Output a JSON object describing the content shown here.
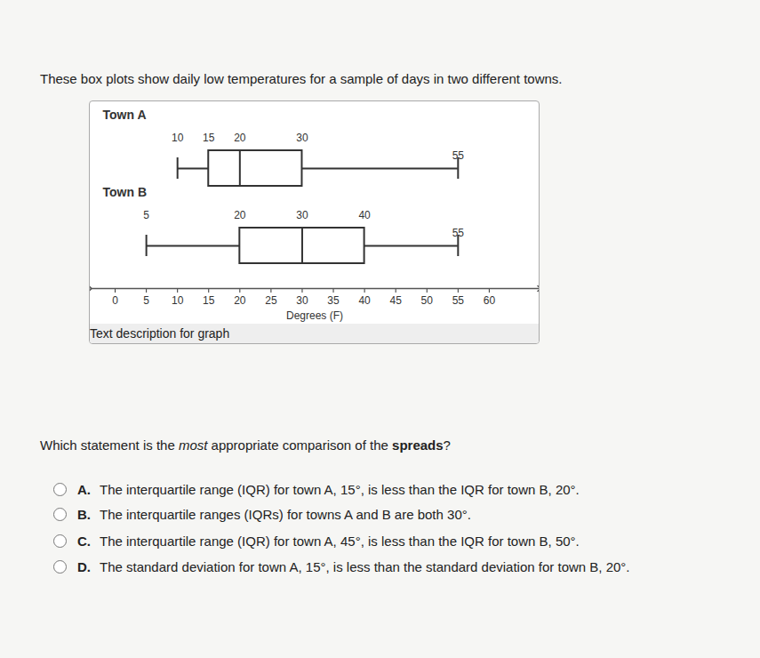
{
  "prompt": "These box plots show daily low temperatures for a sample of days in two different towns.",
  "chart_data": {
    "type": "boxplot",
    "categories": [
      "Town A",
      "Town B"
    ],
    "min": [
      10,
      5
    ],
    "q1": [
      15,
      20
    ],
    "median": [
      20,
      30
    ],
    "q3": [
      30,
      40
    ],
    "max": [
      55,
      55
    ],
    "data_labels": true,
    "xlim": [
      -4,
      68
    ],
    "xticks": [
      0,
      5,
      10,
      15,
      20,
      25,
      30,
      35,
      40,
      45,
      50,
      55,
      60
    ],
    "x_label": "Degrees (F)"
  },
  "link": "Text description for graph",
  "question": [
    {
      "text": "Which statement is the ",
      "style": "normal"
    },
    {
      "text": "most",
      "style": "italic"
    },
    {
      "text": " appropriate comparison of the ",
      "style": "normal"
    },
    {
      "text": "spreads",
      "style": "bold"
    },
    {
      "text": "?",
      "style": "normal"
    }
  ],
  "options": [
    {
      "letter": "A.",
      "text": "The interquartile range (IQR) for town A, 15°, is less than the IQR for town B, 20°."
    },
    {
      "letter": "B.",
      "text": "The interquartile ranges (IQRs) for towns A and B are both 30°."
    },
    {
      "letter": "C.",
      "text": "The interquartile range (IQR) for town A, 45°, is less than the IQR for town B, 50°."
    },
    {
      "letter": "D.",
      "text": "The standard deviation for town A, 15°, is less than the standard deviation for town B, 20°."
    }
  ]
}
